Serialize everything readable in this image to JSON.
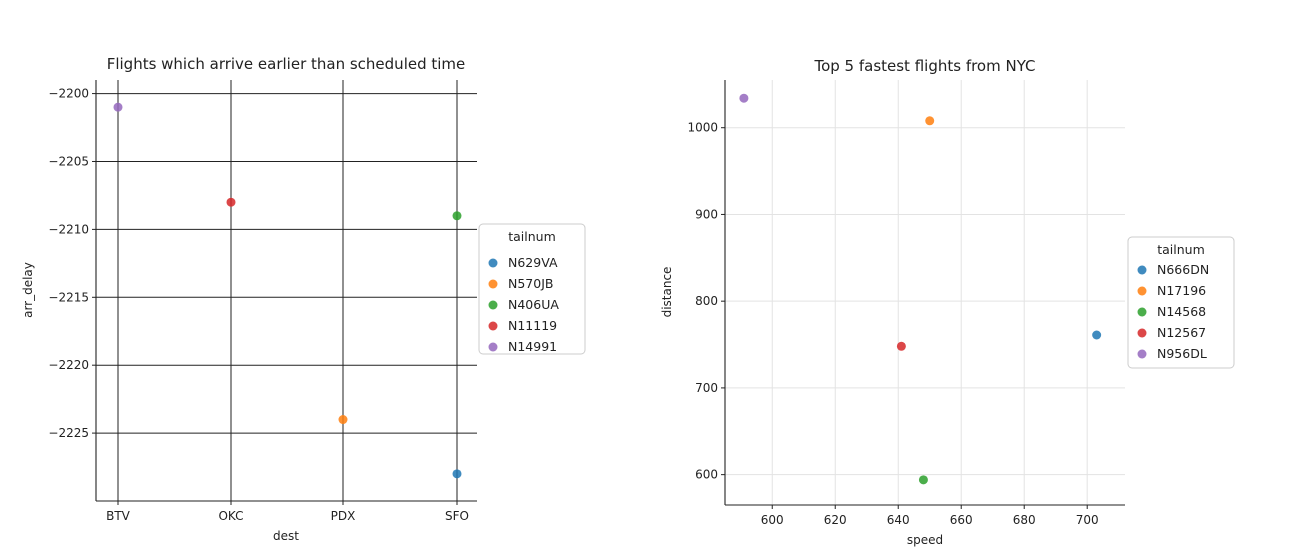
{
  "chart_data": [
    {
      "type": "scatter",
      "title": "Flights which arrive earlier than scheduled time",
      "xlabel": "dest",
      "ylabel": "arr_delay",
      "categories": [
        "BTV",
        "OKC",
        "PDX",
        "SFO"
      ],
      "ylim": [
        -2230,
        -2199
      ],
      "yticks": [
        -2200,
        -2205,
        -2210,
        -2215,
        -2220,
        -2225
      ],
      "ytick_labels": [
        "−2200",
        "−2205",
        "−2210",
        "−2215",
        "−2220",
        "−2225"
      ],
      "grid": true,
      "legend": {
        "title": "tailnum",
        "placement": "right"
      },
      "series": [
        {
          "name": "N629VA",
          "color": "#1f77b4",
          "points": [
            {
              "x": "SFO",
              "y": -2228
            }
          ]
        },
        {
          "name": "N570JB",
          "color": "#ff7f0e",
          "points": [
            {
              "x": "PDX",
              "y": -2224
            }
          ]
        },
        {
          "name": "N406UA",
          "color": "#2ca02c",
          "points": [
            {
              "x": "SFO",
              "y": -2209
            }
          ]
        },
        {
          "name": "N11119",
          "color": "#d62728",
          "points": [
            {
              "x": "OKC",
              "y": -2208
            }
          ]
        },
        {
          "name": "N14991",
          "color": "#9467bd",
          "points": [
            {
              "x": "BTV",
              "y": -2201
            }
          ]
        }
      ]
    },
    {
      "type": "scatter",
      "title": "Top 5 fastest flights from NYC",
      "xlabel": "speed",
      "ylabel": "distance",
      "xlim": [
        585,
        712
      ],
      "ylim": [
        565,
        1055
      ],
      "xticks": [
        600,
        620,
        640,
        660,
        680,
        700
      ],
      "yticks": [
        600,
        700,
        800,
        900,
        1000
      ],
      "grid": true,
      "legend": {
        "title": "tailnum",
        "placement": "right"
      },
      "series": [
        {
          "name": "N666DN",
          "color": "#1f77b4",
          "points": [
            {
              "x": 703,
              "y": 761
            }
          ]
        },
        {
          "name": "N17196",
          "color": "#ff7f0e",
          "points": [
            {
              "x": 650,
              "y": 1008
            }
          ]
        },
        {
          "name": "N14568",
          "color": "#2ca02c",
          "points": [
            {
              "x": 648,
              "y": 594
            }
          ]
        },
        {
          "name": "N12567",
          "color": "#d62728",
          "points": [
            {
              "x": 641,
              "y": 748
            }
          ]
        },
        {
          "name": "N956DL",
          "color": "#9467bd",
          "points": [
            {
              "x": 591,
              "y": 1034
            }
          ]
        }
      ]
    }
  ]
}
